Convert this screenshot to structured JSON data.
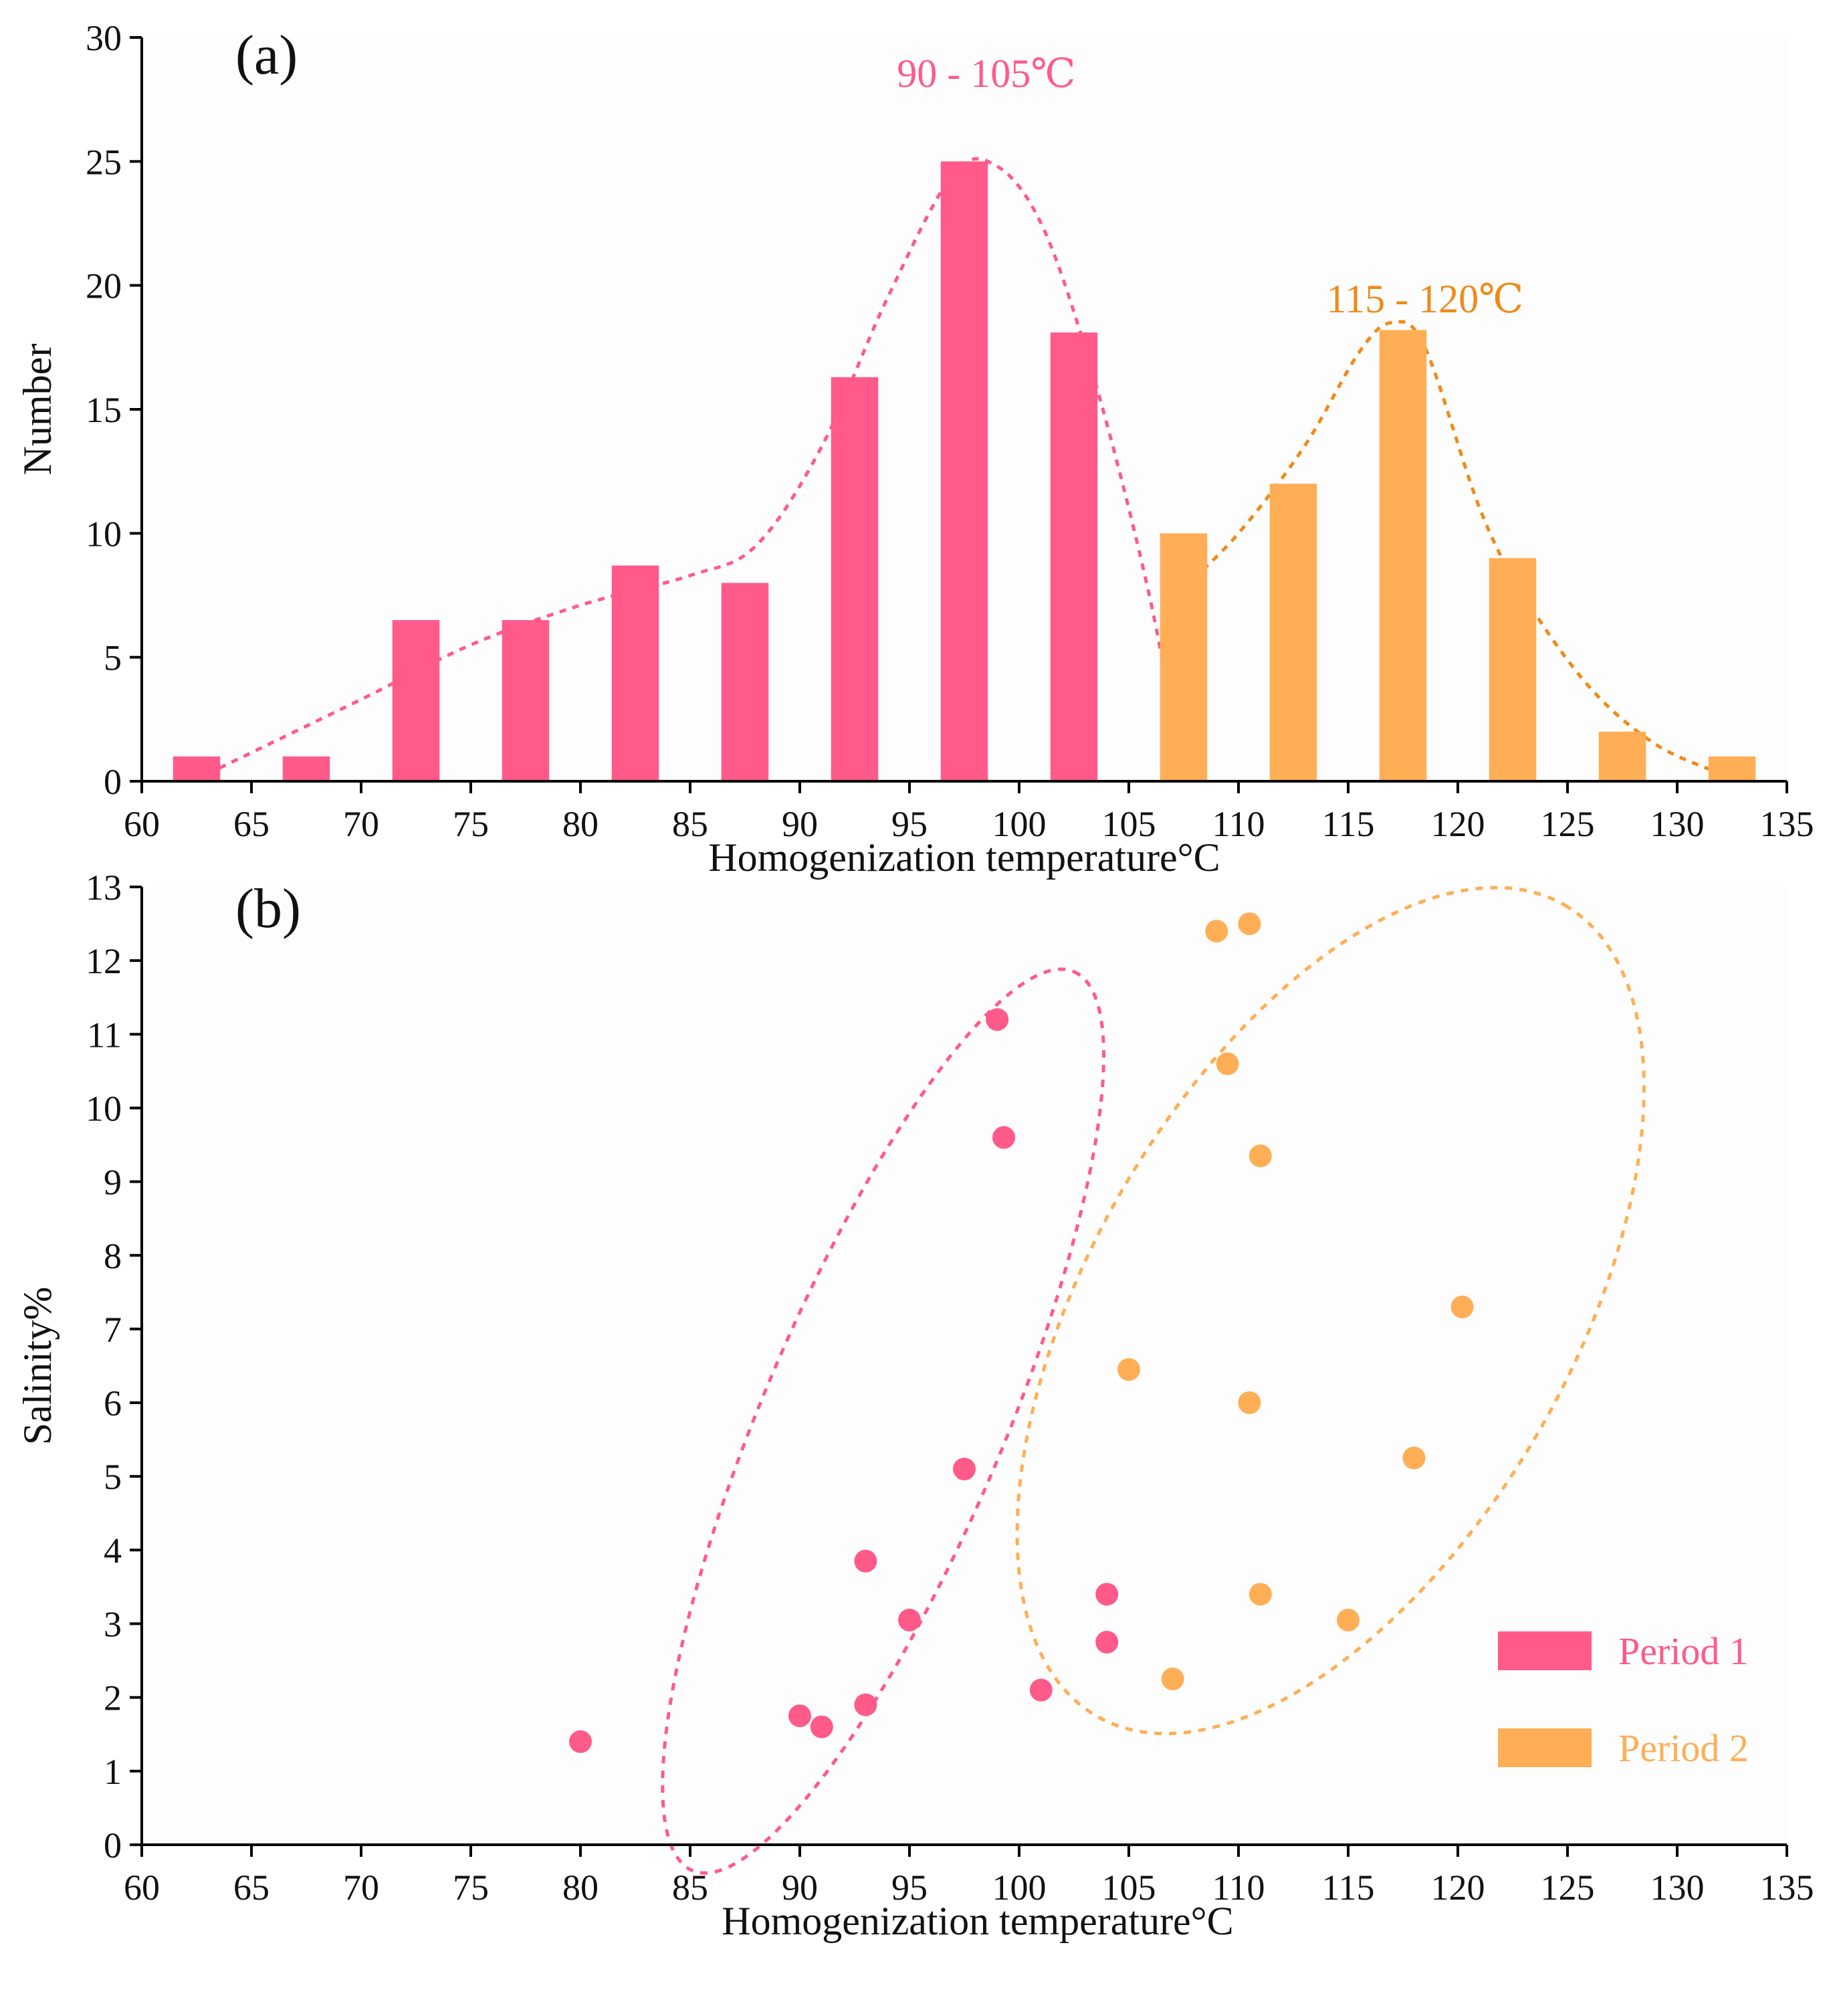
{
  "colors": {
    "period1": "#ff5a8a",
    "period2": "#ffae56",
    "axis": "#000000",
    "text": "#111111",
    "plot_bg": "#fdfdfd"
  },
  "chart_data": [
    {
      "type": "bar",
      "panel_label": "(a)",
      "xlabel": "Homogenization temperature°C",
      "ylabel": "Number",
      "xlim": [
        60,
        135
      ],
      "ylim": [
        0,
        30
      ],
      "xticks": [
        "60",
        "65",
        "70",
        "75",
        "80",
        "85",
        "90",
        "95",
        "100",
        "105",
        "110",
        "115",
        "120",
        "125",
        "130",
        "135"
      ],
      "yticks": [
        "0",
        "5",
        "10",
        "15",
        "20",
        "25",
        "30"
      ],
      "bin_width": 5,
      "series": [
        {
          "name": "Period 1",
          "bars": [
            {
              "x": 62.5,
              "value": 1
            },
            {
              "x": 67.5,
              "value": 1
            },
            {
              "x": 72.5,
              "value": 6.5
            },
            {
              "x": 77.5,
              "value": 6.5
            },
            {
              "x": 82.5,
              "value": 8.7
            },
            {
              "x": 87.5,
              "value": 8
            },
            {
              "x": 92.5,
              "value": 16.3
            },
            {
              "x": 97.5,
              "value": 25
            },
            {
              "x": 102.5,
              "value": 18.1
            }
          ]
        },
        {
          "name": "Period 2",
          "bars": [
            {
              "x": 107.5,
              "value": 10
            },
            {
              "x": 112.5,
              "value": 12
            },
            {
              "x": 117.5,
              "value": 18.2
            },
            {
              "x": 122.5,
              "value": 9
            },
            {
              "x": 127.5,
              "value": 2
            },
            {
              "x": 132.5,
              "value": 1
            }
          ]
        }
      ],
      "fit_curves": [
        {
          "name": "Period 1 trend",
          "points": [
            [
              63,
              0.3
            ],
            [
              70,
              3.3
            ],
            [
              75,
              5.5
            ],
            [
              80,
              7.1
            ],
            [
              85,
              8.3
            ],
            [
              88,
              9.5
            ],
            [
              91,
              13.5
            ],
            [
              94,
              19.5
            ],
            [
              97,
              24.5
            ],
            [
              99,
              24.8
            ],
            [
              101,
              22.5
            ],
            [
              103,
              17.5
            ],
            [
              105,
              11
            ],
            [
              106.5,
              5
            ],
            [
              107.2,
              0
            ]
          ]
        },
        {
          "name": "Period 2 trend",
          "points": [
            [
              107.5,
              7.8
            ],
            [
              110,
              10
            ],
            [
              113,
              13.5
            ],
            [
              115.5,
              17.3
            ],
            [
              117,
              18.5
            ],
            [
              118.5,
              17.5
            ],
            [
              121,
              11
            ],
            [
              123,
              7.5
            ],
            [
              126,
              3.8
            ],
            [
              129,
              1.5
            ],
            [
              132,
              0.3
            ]
          ]
        }
      ],
      "annotations": [
        {
          "text": "90 - 105℃",
          "x": 98.5,
          "y": 28.6,
          "series": "Period 1"
        },
        {
          "text": "115 - 120℃",
          "x": 118.5,
          "y": 19.5,
          "series": "Period 2"
        }
      ]
    },
    {
      "type": "scatter",
      "panel_label": "(b)",
      "xlabel": "Homogenization temperature°C",
      "ylabel": "Salinity%",
      "xlim": [
        60,
        135
      ],
      "ylim": [
        0,
        13
      ],
      "xticks": [
        "60",
        "65",
        "70",
        "75",
        "80",
        "85",
        "90",
        "95",
        "100",
        "105",
        "110",
        "115",
        "120",
        "125",
        "130",
        "135"
      ],
      "yticks": [
        "0",
        "1",
        "2",
        "3",
        "4",
        "5",
        "6",
        "7",
        "8",
        "9",
        "10",
        "11",
        "12",
        "13"
      ],
      "series": [
        {
          "name": "Period 1",
          "points": [
            {
              "x": 80,
              "y": 1.4
            },
            {
              "x": 90,
              "y": 1.75
            },
            {
              "x": 91,
              "y": 1.6
            },
            {
              "x": 93,
              "y": 1.9
            },
            {
              "x": 93,
              "y": 3.85
            },
            {
              "x": 95,
              "y": 3.05
            },
            {
              "x": 97.5,
              "y": 5.1
            },
            {
              "x": 99,
              "y": 11.2
            },
            {
              "x": 99.3,
              "y": 9.6
            },
            {
              "x": 101,
              "y": 2.1
            },
            {
              "x": 104,
              "y": 3.4
            },
            {
              "x": 104,
              "y": 2.75
            }
          ]
        },
        {
          "name": "Period 2",
          "points": [
            {
              "x": 105,
              "y": 6.45
            },
            {
              "x": 107,
              "y": 2.25
            },
            {
              "x": 109,
              "y": 12.4
            },
            {
              "x": 110.5,
              "y": 12.5
            },
            {
              "x": 109.5,
              "y": 10.6
            },
            {
              "x": 111,
              "y": 9.35
            },
            {
              "x": 110.5,
              "y": 6.0
            },
            {
              "x": 111,
              "y": 3.4
            },
            {
              "x": 115,
              "y": 3.05
            },
            {
              "x": 118,
              "y": 5.25
            },
            {
              "x": 120.2,
              "y": 7.3
            }
          ]
        }
      ],
      "ellipses": [
        {
          "series": "Period 1",
          "cx": 93.8,
          "cy": 5.75,
          "rx": 12.7,
          "ry": 4.25,
          "angle_deg": -67
        },
        {
          "series": "Period 2",
          "cx": 114.2,
          "cy": 7.25,
          "rx": 22.5,
          "ry": 3.6,
          "angle_deg": -60
        }
      ],
      "legend": {
        "position": "bottom-right",
        "entries": [
          "Period 1",
          "Period 2"
        ]
      }
    }
  ]
}
